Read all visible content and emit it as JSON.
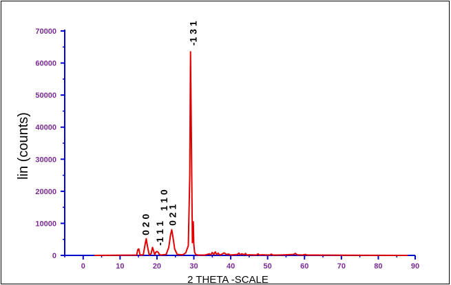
{
  "chart_data": {
    "type": "line",
    "xlabel": "2 THETA -SCALE",
    "ylabel": "lin (counts)",
    "xlim": [
      -5,
      90
    ],
    "ylim": [
      0,
      70000
    ],
    "x_ticks": [
      0,
      10,
      20,
      30,
      40,
      50,
      60,
      70,
      80,
      90
    ],
    "y_ticks": [
      0,
      10000,
      20000,
      30000,
      40000,
      50000,
      60000,
      70000
    ],
    "grid": false,
    "colors": {
      "axis": "#0000cc",
      "tick_labels": "#7b2a92",
      "series": "#e00000"
    },
    "series": [
      {
        "x": [
          3,
          14.5,
          14.8,
          15.1,
          15.4,
          16.3,
          16.8,
          17.1,
          17.4,
          17.9,
          18.4,
          18.8,
          19.1,
          19.4,
          19.7,
          20.0,
          20.3,
          20.6,
          21.0,
          22.5,
          23.2,
          23.7,
          24.0,
          24.3,
          24.8,
          25.5,
          27.0,
          27.8,
          28.5,
          28.9,
          29.1,
          29.3,
          29.6,
          29.85,
          30.0,
          30.2,
          30.5,
          31.0,
          33,
          34.2,
          34.6,
          35.0,
          35.4,
          35.8,
          36.2,
          36.6,
          37.0,
          37.5,
          38.2,
          38.8,
          39.4,
          40,
          41.8,
          42.2,
          42.6,
          43.0,
          43.6,
          44.0,
          44.4,
          45.0,
          47.0,
          47.4,
          47.8,
          48.5,
          50.6,
          51.0,
          51.4,
          52.5,
          55,
          57.0,
          57.5,
          58.0,
          59.5,
          60.2,
          60.7,
          62,
          88
        ],
        "y": [
          0,
          100,
          1800,
          2000,
          100,
          200,
          3500,
          5200,
          3000,
          200,
          500,
          2500,
          1400,
          200,
          1000,
          1200,
          1000,
          400,
          100,
          300,
          2500,
          6500,
          8000,
          6000,
          2000,
          300,
          200,
          800,
          3000,
          25000,
          63500,
          40000,
          4000,
          10500,
          3500,
          1000,
          300,
          100,
          100,
          500,
          200,
          900,
          300,
          1100,
          300,
          700,
          200,
          300,
          800,
          300,
          400,
          100,
          300,
          700,
          200,
          500,
          200,
          600,
          100,
          200,
          100,
          500,
          100,
          200,
          100,
          400,
          100,
          100,
          200,
          300,
          600,
          200,
          100,
          300,
          100,
          100,
          0
        ]
      }
    ],
    "annotations": [
      {
        "text": "0 2 0",
        "x": 16.9,
        "y": 5600
      },
      {
        "text": "-1 1 1",
        "x": 20.8,
        "y": 2400
      },
      {
        "text": "1 1 0",
        "x": 21.9,
        "y": 13200
      },
      {
        "text": "0 2 1",
        "x": 24.2,
        "y": 8600
      },
      {
        "text": "-1 3 1",
        "x": 29.8,
        "y": 64800
      }
    ]
  }
}
